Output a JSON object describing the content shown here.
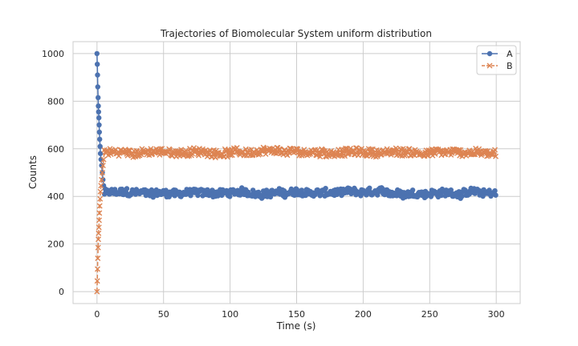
{
  "chart_data": {
    "type": "line",
    "title": "Trajectories of Biomolecular System uniform distribution",
    "xlabel": "Time (s)",
    "ylabel": "Counts",
    "xlim": [
      -18,
      318
    ],
    "ylim": [
      -50,
      1050
    ],
    "xticks": [
      0,
      50,
      100,
      150,
      200,
      250,
      300
    ],
    "yticks": [
      0,
      200,
      400,
      600,
      800,
      1000
    ],
    "grid": true,
    "legend_position": "top-right",
    "series": [
      {
        "name": "A",
        "color": "#4c72b0",
        "marker": "circle",
        "linestyle": "solid",
        "initial": [
          [
            0,
            1000
          ],
          [
            0.2,
            955
          ],
          [
            0.4,
            910
          ],
          [
            0.6,
            860
          ],
          [
            0.8,
            815
          ],
          [
            1.0,
            780
          ],
          [
            1.2,
            755
          ],
          [
            1.4,
            730
          ],
          [
            1.6,
            700
          ],
          [
            1.8,
            670
          ],
          [
            2.0,
            640
          ],
          [
            2.3,
            610
          ],
          [
            2.6,
            580
          ],
          [
            3.0,
            555
          ],
          [
            3.5,
            530
          ],
          [
            4.0,
            500
          ],
          [
            4.5,
            470
          ],
          [
            5.0,
            445
          ]
        ],
        "steady_mean": 415,
        "steady_jitter": 22,
        "steady_range": [
          5,
          300
        ]
      },
      {
        "name": "B",
        "color": "#dd8452",
        "marker": "x",
        "linestyle": "dashed",
        "initial": [
          [
            0,
            0
          ],
          [
            0.2,
            45
          ],
          [
            0.4,
            95
          ],
          [
            0.6,
            140
          ],
          [
            0.8,
            185
          ],
          [
            1.0,
            220
          ],
          [
            1.2,
            245
          ],
          [
            1.4,
            270
          ],
          [
            1.6,
            300
          ],
          [
            1.8,
            330
          ],
          [
            2.0,
            360
          ],
          [
            2.3,
            390
          ],
          [
            2.6,
            420
          ],
          [
            3.0,
            445
          ],
          [
            3.5,
            470
          ],
          [
            4.0,
            500
          ],
          [
            4.5,
            530
          ],
          [
            5.0,
            555
          ]
        ],
        "steady_mean": 585,
        "steady_jitter": 22,
        "steady_range": [
          5,
          300
        ]
      }
    ]
  }
}
